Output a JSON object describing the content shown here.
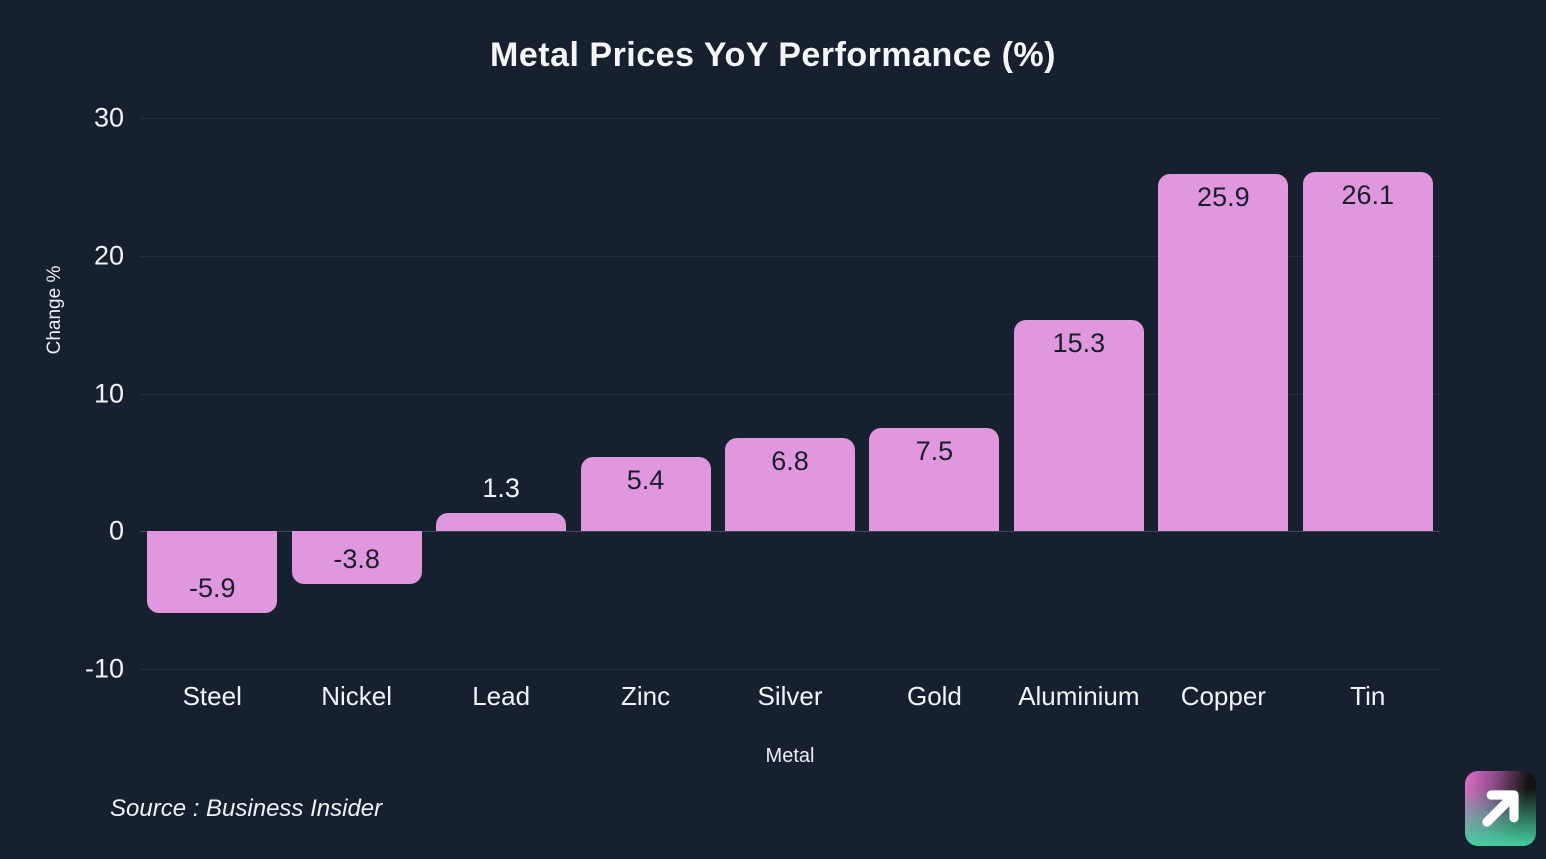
{
  "title": "Metal Prices YoY Performance (%)",
  "source": "Source : Business Insider",
  "colors": {
    "background": "#16202e",
    "bar": "#e097de",
    "gridline": "#242f40",
    "zero_line": "#3d4859",
    "text": "#f2f4f7",
    "value_label_inside": "#181f2b",
    "value_label_outside": "#f2f4f7"
  },
  "logo": {
    "icon": "arrow-up-right-icon",
    "gradient": [
      "#e070c8",
      "#121212",
      "#45cf9e"
    ]
  },
  "chart_data": {
    "type": "bar",
    "categories": [
      "Steel",
      "Nickel",
      "Lead",
      "Zinc",
      "Silver",
      "Gold",
      "Aluminium",
      "Copper",
      "Tin"
    ],
    "values": [
      -5.9,
      -3.8,
      1.3,
      5.4,
      6.8,
      7.5,
      15.3,
      25.9,
      26.1
    ],
    "title": "Metal Prices YoY Performance (%)",
    "xlabel": "Metal",
    "ylabel": "Change %",
    "ylim": [
      -10,
      30
    ],
    "yticks": [
      30,
      20,
      10,
      0,
      -10
    ],
    "grid": true,
    "legend": false,
    "bar_color": "#e097de",
    "value_labels": true
  }
}
